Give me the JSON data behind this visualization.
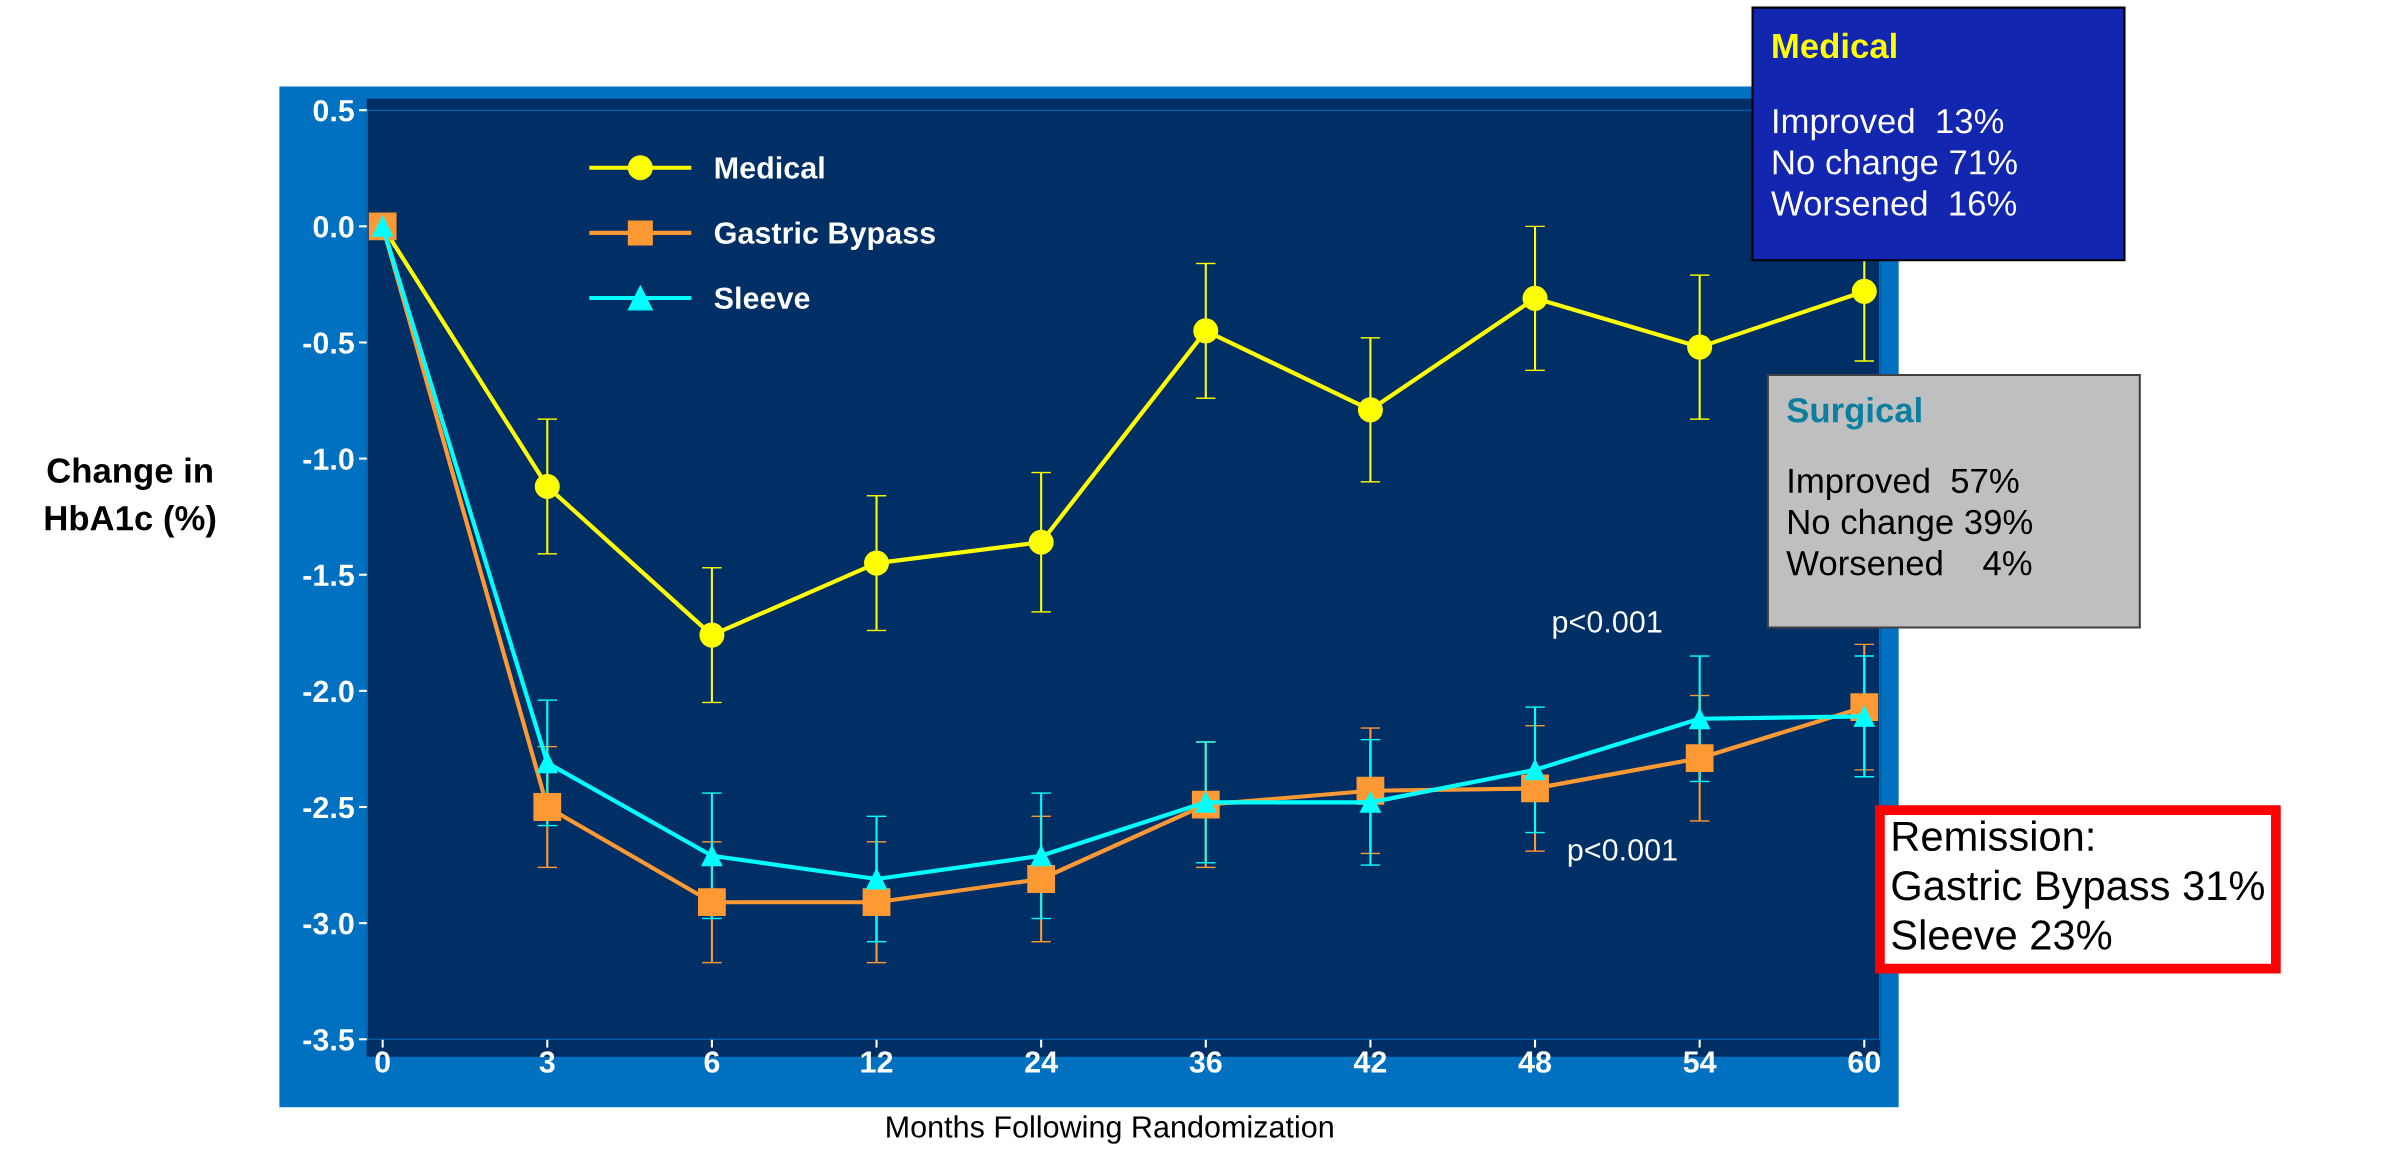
{
  "chart_data": {
    "type": "line",
    "xlabel": "Months Following Randomization",
    "ylabel": "Change in\nHbA1c (%)",
    "categories": [
      "0",
      "3",
      "6",
      "12",
      "24",
      "36",
      "42",
      "48",
      "54",
      "60"
    ],
    "series": [
      {
        "name": "Medical",
        "color": "#ffff00",
        "marker": "circle",
        "values": [
          0.0,
          -1.12,
          -1.76,
          -1.45,
          -1.36,
          -0.45,
          -0.79,
          -0.31,
          -0.52,
          -0.28
        ],
        "errors": [
          null,
          0.29,
          0.29,
          0.29,
          0.3,
          0.29,
          0.31,
          0.31,
          0.31,
          0.3
        ]
      },
      {
        "name": "Gastric Bypass",
        "color": "#ff9933",
        "marker": "square",
        "values": [
          0.0,
          -2.5,
          -2.91,
          -2.91,
          -2.81,
          -2.49,
          -2.43,
          -2.42,
          -2.29,
          -2.07
        ],
        "errors": [
          null,
          0.26,
          0.26,
          0.26,
          0.27,
          0.27,
          0.27,
          0.27,
          0.27,
          0.27
        ]
      },
      {
        "name": "Sleeve",
        "color": "#00ffff",
        "marker": "triangle",
        "values": [
          0.0,
          -2.31,
          -2.71,
          -2.81,
          -2.71,
          -2.48,
          -2.48,
          -2.34,
          -2.12,
          -2.11
        ],
        "errors": [
          null,
          0.27,
          0.27,
          0.27,
          0.27,
          0.26,
          0.27,
          0.27,
          0.27,
          0.26
        ]
      }
    ],
    "ylim": [
      -3.5,
      0.5
    ],
    "yticks": [
      {
        "value": -3.5,
        "label": "-3.5"
      },
      {
        "value": -3.0,
        "label": "-3.0"
      },
      {
        "value": -2.5,
        "label": "-2.5"
      },
      {
        "value": -2.0,
        "label": "-2.0"
      },
      {
        "value": -1.5,
        "label": "-1.5"
      },
      {
        "value": -1.0,
        "label": "-1.0"
      },
      {
        "value": -0.5,
        "label": "-0.5"
      },
      {
        "value": 0.0,
        "label": "0.0"
      },
      {
        "value": 0.5,
        "label": "0.5"
      }
    ],
    "grid": false,
    "legend": "top left",
    "line_style": "solid",
    "annotations": [
      "p<0.001",
      "p<0.001",
      "Medical",
      "Improved  13%\nNo change 71%\nWorsened  16%",
      "Surgical",
      "Improved  57%\nNo change 39%\nWorsened    4%",
      "Remission:\nGastric Bypass 31%\nSleeve 23%"
    ]
  }
}
